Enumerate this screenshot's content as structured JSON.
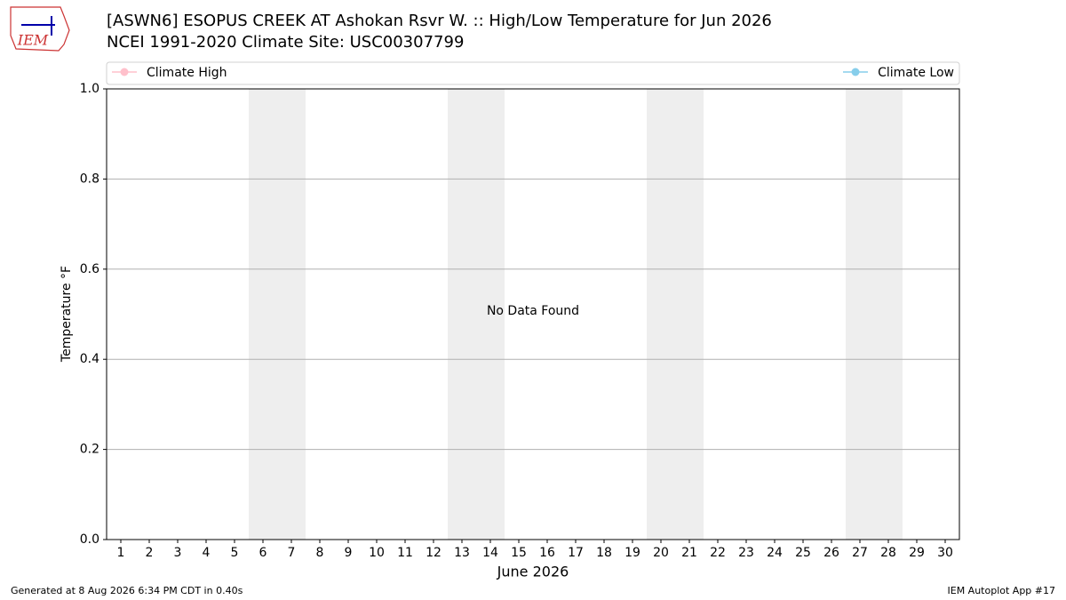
{
  "logo_text": "IEM",
  "chart_data": {
    "type": "line",
    "title": "[ASWN6] ESOPUS CREEK  AT Ashokan Rsvr W. :: High/Low Temperature for Jun 2026",
    "subtitle": "NCEI 1991-2020 Climate Site: USC00307799",
    "xlabel": "June 2026",
    "ylabel": "Temperature °F",
    "annotation": "No Data Found",
    "x": [
      1,
      2,
      3,
      4,
      5,
      6,
      7,
      8,
      9,
      10,
      11,
      12,
      13,
      14,
      15,
      16,
      17,
      18,
      19,
      20,
      21,
      22,
      23,
      24,
      25,
      26,
      27,
      28,
      29,
      30
    ],
    "series": [
      {
        "name": "Climate High",
        "color": "#ffc0cb",
        "values": [
          null,
          null,
          null,
          null,
          null,
          null,
          null,
          null,
          null,
          null,
          null,
          null,
          null,
          null,
          null,
          null,
          null,
          null,
          null,
          null,
          null,
          null,
          null,
          null,
          null,
          null,
          null,
          null,
          null,
          null
        ]
      },
      {
        "name": "Climate Low",
        "color": "#87ceeb",
        "values": [
          null,
          null,
          null,
          null,
          null,
          null,
          null,
          null,
          null,
          null,
          null,
          null,
          null,
          null,
          null,
          null,
          null,
          null,
          null,
          null,
          null,
          null,
          null,
          null,
          null,
          null,
          null,
          null,
          null,
          null
        ]
      }
    ],
    "shaded_days": [
      6,
      7,
      13,
      14,
      20,
      21,
      27,
      28
    ],
    "xlim": [
      0.5,
      30.5
    ],
    "xticks": [
      1,
      2,
      3,
      4,
      5,
      6,
      7,
      8,
      9,
      10,
      11,
      12,
      13,
      14,
      15,
      16,
      17,
      18,
      19,
      20,
      21,
      22,
      23,
      24,
      25,
      26,
      27,
      28,
      29,
      30
    ],
    "ylim": [
      0,
      1
    ],
    "yticks": [
      {
        "value": 0,
        "label": "0.0"
      },
      {
        "value": 0.2,
        "label": "0.2"
      },
      {
        "value": 0.4,
        "label": "0.4"
      },
      {
        "value": 0.6,
        "label": "0.6"
      },
      {
        "value": 0.8,
        "label": "0.8"
      },
      {
        "value": 1,
        "label": "1.0"
      }
    ],
    "grid": true,
    "footer_left": "Generated at 8 Aug 2026 6:34 PM CDT in 0.40s",
    "footer_right": "IEM Autoplot App #17"
  }
}
